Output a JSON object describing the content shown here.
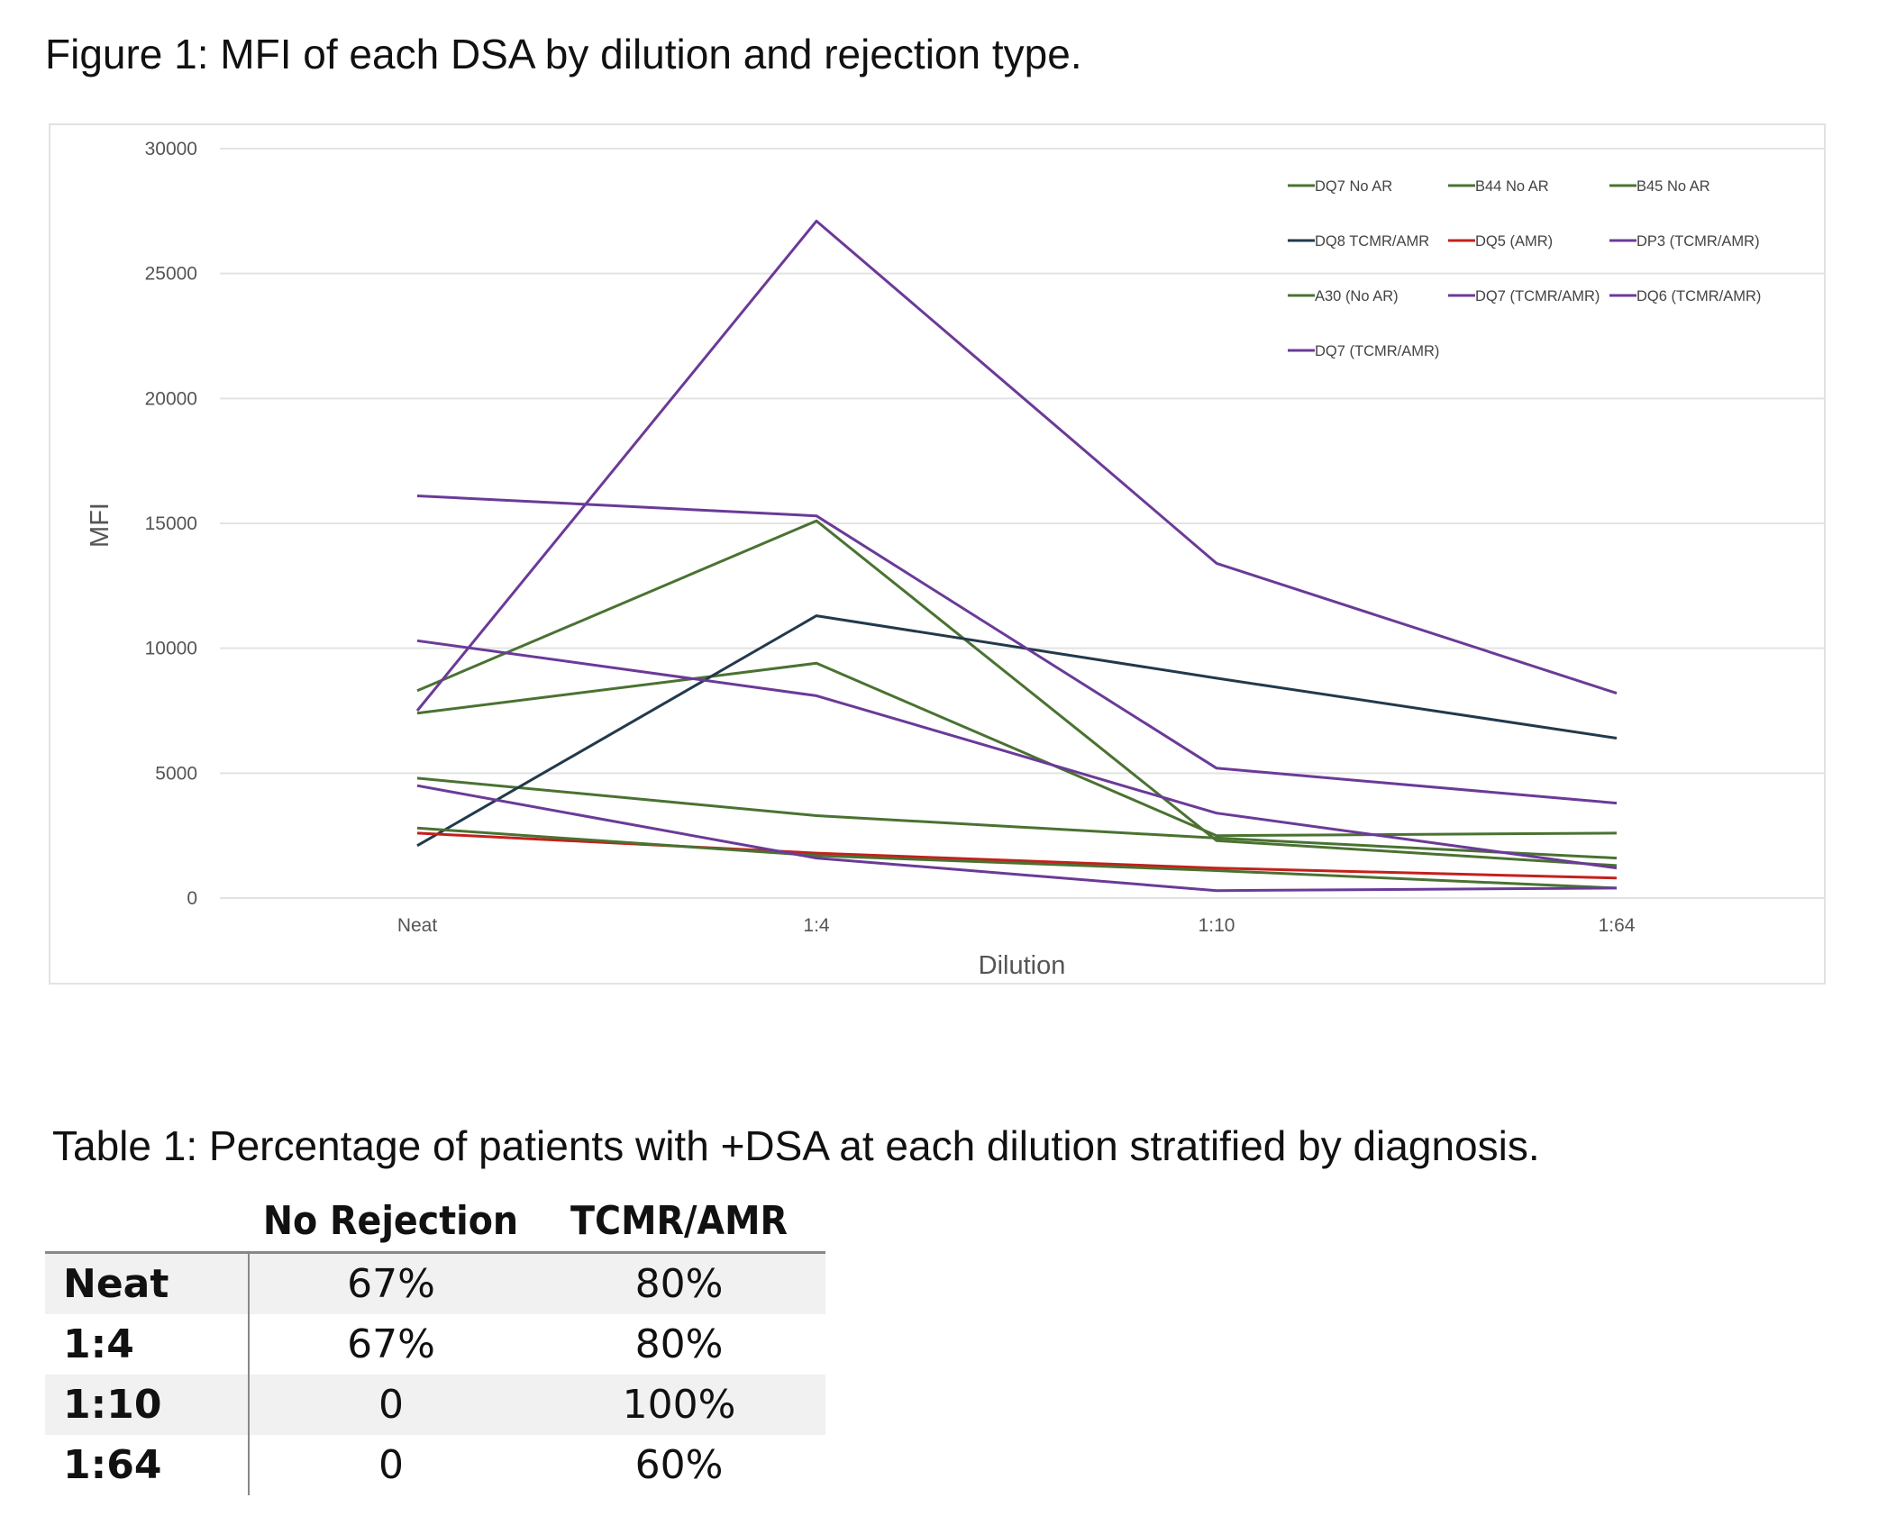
{
  "figure_title": "Figure 1: MFI of each DSA by dilution and rejection type.",
  "chart_data": {
    "type": "line",
    "xlabel": "Dilution",
    "ylabel": "MFI",
    "categories": [
      "Neat",
      "1:4",
      "1:10",
      "1:64"
    ],
    "ylim": [
      0,
      30000
    ],
    "yticks": [
      0,
      5000,
      10000,
      15000,
      20000,
      25000,
      30000
    ],
    "grid": true,
    "legend_position": "top-right",
    "series": [
      {
        "name": "DQ7 No AR",
        "color": "#4a7232",
        "values": [
          8300,
          15100,
          2300,
          1300
        ]
      },
      {
        "name": "B44 No AR",
        "color": "#4a7232",
        "values": [
          7400,
          9400,
          2500,
          2600
        ]
      },
      {
        "name": "B45 No AR",
        "color": "#4a7232",
        "values": [
          4800,
          3300,
          2400,
          1600
        ]
      },
      {
        "name": "DQ8 TCMR/AMR",
        "color": "#22394c",
        "values": [
          2100,
          11300,
          8800,
          6400
        ]
      },
      {
        "name": "DQ5 (AMR)",
        "color": "#c4201c",
        "values": [
          2600,
          1800,
          1200,
          800
        ]
      },
      {
        "name": "DP3 (TCMR/AMR)",
        "color": "#6b3a98",
        "values": [
          7500,
          27100,
          13400,
          8200
        ]
      },
      {
        "name": "A30 (No AR)",
        "color": "#4a7232",
        "values": [
          2800,
          1700,
          1100,
          400
        ]
      },
      {
        "name": "DQ7  (TCMR/AMR)",
        "color": "#6b3a98",
        "values": [
          16100,
          15300,
          5200,
          3800
        ]
      },
      {
        "name": "DQ6 (TCMR/AMR)",
        "color": "#6b3a98",
        "values": [
          10300,
          8100,
          3400,
          1200
        ]
      },
      {
        "name": "DQ7 (TCMR/AMR)",
        "color": "#6b3a98",
        "values": [
          4500,
          1600,
          300,
          400
        ]
      }
    ]
  },
  "table": {
    "caption": "Table 1: Percentage of patients with +DSA at each dilution stratified by diagnosis.",
    "headers": [
      "No Rejection",
      "TCMR/AMR"
    ],
    "rows": [
      {
        "label": "Neat",
        "no_rejection": "67%",
        "tcmr_amr": "80%"
      },
      {
        "label": "1:4",
        "no_rejection": "67%",
        "tcmr_amr": "80%"
      },
      {
        "label": "1:10",
        "no_rejection": "0",
        "tcmr_amr": "100%"
      },
      {
        "label": "1:64",
        "no_rejection": "0",
        "tcmr_amr": "60%"
      }
    ]
  }
}
